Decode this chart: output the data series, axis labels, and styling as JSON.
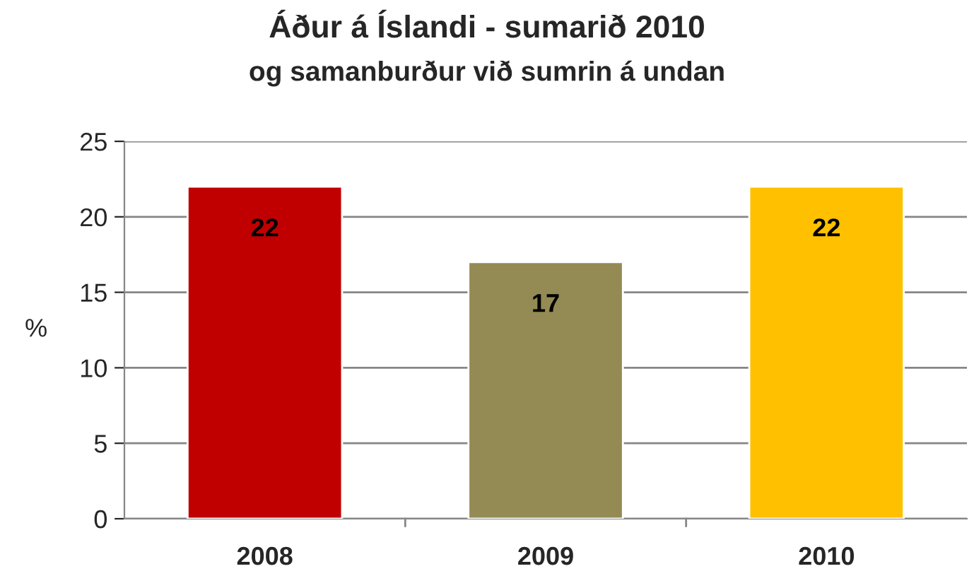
{
  "chart_data": {
    "type": "bar",
    "title": "Áður á Íslandi - sumarið 2010",
    "subtitle": "og samanburður við sumrin á undan",
    "ylabel": "%",
    "categories": [
      "2008",
      "2009",
      "2010"
    ],
    "values": [
      22,
      17,
      22
    ],
    "colors": [
      "#c00000",
      "#948a54",
      "#ffc000"
    ],
    "ylim": [
      0,
      25
    ],
    "yticks": [
      0,
      5,
      10,
      15,
      20,
      25
    ],
    "grid": "y",
    "data_labels": true,
    "legend": false
  }
}
